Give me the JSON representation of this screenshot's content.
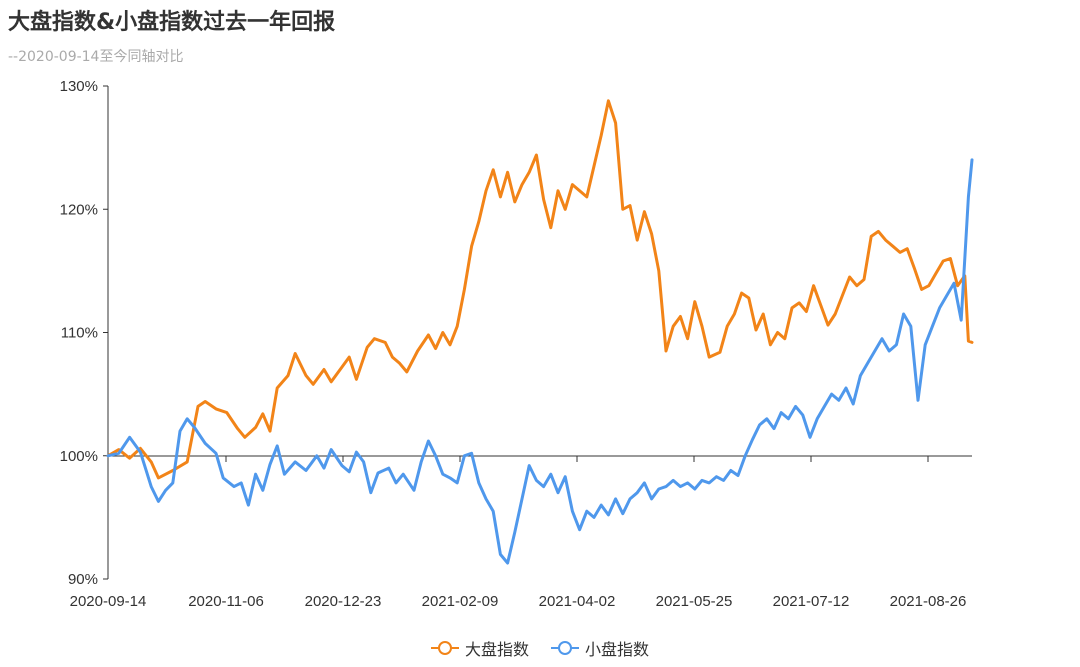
{
  "title": "大盘指数&小盘指数过去一年回报",
  "subtitle": "--2020-09-14至今同轴对比",
  "colors": {
    "series1": "#f28418",
    "series2": "#4f98ec",
    "axis": "#333333"
  },
  "chart_data": {
    "type": "line",
    "title": "大盘指数&小盘指数过去一年回报",
    "subtitle": "--2020-09-14至今同轴对比",
    "xlabel": "",
    "ylabel": "",
    "ylim": [
      90,
      130
    ],
    "y_ticks": [
      90,
      100,
      110,
      120,
      130
    ],
    "y_tick_labels": [
      "90%",
      "100%",
      "110%",
      "120%",
      "130%"
    ],
    "x_ticks": [
      "2020-09-14",
      "2020-11-06",
      "2020-12-23",
      "2021-02-09",
      "2021-04-02",
      "2021-05-25",
      "2021-07-12",
      "2021-08-26"
    ],
    "grid": false,
    "legend": "bottom-center",
    "x_count": 241,
    "series": [
      {
        "name": "大盘指数",
        "points": [
          [
            0,
            100
          ],
          [
            3,
            100.5
          ],
          [
            6,
            99.8
          ],
          [
            9,
            100.6
          ],
          [
            12,
            99.5
          ],
          [
            14,
            98.2
          ],
          [
            18,
            98.8
          ],
          [
            22,
            99.5
          ],
          [
            25,
            104
          ],
          [
            27,
            104.4
          ],
          [
            30,
            103.8
          ],
          [
            33,
            103.5
          ],
          [
            36,
            102.2
          ],
          [
            38,
            101.5
          ],
          [
            41,
            102.3
          ],
          [
            43,
            103.4
          ],
          [
            45,
            102
          ],
          [
            47,
            105.5
          ],
          [
            50,
            106.5
          ],
          [
            52,
            108.3
          ],
          [
            55,
            106.5
          ],
          [
            57,
            105.8
          ],
          [
            60,
            107
          ],
          [
            62,
            106
          ],
          [
            65,
            107.2
          ],
          [
            67,
            108
          ],
          [
            69,
            106.2
          ],
          [
            72,
            108.8
          ],
          [
            74,
            109.5
          ],
          [
            77,
            109.2
          ],
          [
            79,
            108
          ],
          [
            81,
            107.5
          ],
          [
            83,
            106.8
          ],
          [
            86,
            108.5
          ],
          [
            89,
            109.8
          ],
          [
            91,
            108.7
          ],
          [
            93,
            110
          ],
          [
            95,
            109
          ],
          [
            97,
            110.5
          ],
          [
            99,
            113.5
          ],
          [
            101,
            117
          ],
          [
            103,
            119
          ],
          [
            105,
            121.5
          ],
          [
            107,
            123.2
          ],
          [
            109,
            121
          ],
          [
            111,
            123
          ],
          [
            113,
            120.6
          ],
          [
            115,
            122
          ],
          [
            117,
            123
          ],
          [
            119,
            124.4
          ],
          [
            121,
            120.8
          ],
          [
            123,
            118.5
          ],
          [
            125,
            121.5
          ],
          [
            127,
            120
          ],
          [
            129,
            122
          ],
          [
            131,
            121.5
          ],
          [
            133,
            121
          ],
          [
            135,
            123.5
          ],
          [
            137,
            126
          ],
          [
            139,
            128.8
          ],
          [
            141,
            127
          ],
          [
            143,
            120
          ],
          [
            145,
            120.3
          ],
          [
            147,
            117.5
          ],
          [
            149,
            119.8
          ],
          [
            151,
            118
          ],
          [
            153,
            115
          ],
          [
            155,
            108.5
          ],
          [
            157,
            110.5
          ],
          [
            159,
            111.3
          ],
          [
            161,
            109.5
          ],
          [
            163,
            112.5
          ],
          [
            165,
            110.5
          ],
          [
            167,
            108
          ],
          [
            170,
            108.4
          ],
          [
            172,
            110.5
          ],
          [
            174,
            111.5
          ],
          [
            176,
            113.2
          ],
          [
            178,
            112.8
          ],
          [
            180,
            110.2
          ],
          [
            182,
            111.5
          ],
          [
            184,
            109
          ],
          [
            186,
            110
          ],
          [
            188,
            109.5
          ],
          [
            190,
            112
          ],
          [
            192,
            112.4
          ],
          [
            194,
            111.7
          ],
          [
            196,
            113.8
          ],
          [
            198,
            112.2
          ],
          [
            200,
            110.6
          ],
          [
            202,
            111.5
          ],
          [
            204,
            113
          ],
          [
            206,
            114.5
          ],
          [
            208,
            113.8
          ],
          [
            210,
            114.3
          ],
          [
            212,
            117.8
          ],
          [
            214,
            118.2
          ],
          [
            216,
            117.5
          ],
          [
            218,
            117
          ],
          [
            220,
            116.5
          ],
          [
            222,
            116.8
          ],
          [
            224,
            115.2
          ],
          [
            226,
            113.5
          ],
          [
            228,
            113.8
          ],
          [
            230,
            114.8
          ],
          [
            232,
            115.8
          ],
          [
            234,
            116
          ],
          [
            236,
            113.8
          ],
          [
            238,
            114.6
          ],
          [
            239,
            109.3
          ],
          [
            240,
            109.2
          ]
        ]
      },
      {
        "name": "小盘指数",
        "points": [
          [
            0,
            100
          ],
          [
            3,
            100.2
          ],
          [
            6,
            101.5
          ],
          [
            9,
            100.3
          ],
          [
            12,
            97.5
          ],
          [
            14,
            96.3
          ],
          [
            16,
            97.2
          ],
          [
            18,
            97.8
          ],
          [
            20,
            102
          ],
          [
            22,
            103
          ],
          [
            24,
            102.3
          ],
          [
            27,
            101
          ],
          [
            30,
            100.2
          ],
          [
            32,
            98.2
          ],
          [
            35,
            97.5
          ],
          [
            37,
            97.8
          ],
          [
            39,
            96
          ],
          [
            41,
            98.5
          ],
          [
            43,
            97.2
          ],
          [
            45,
            99.3
          ],
          [
            47,
            100.8
          ],
          [
            49,
            98.5
          ],
          [
            52,
            99.5
          ],
          [
            55,
            98.8
          ],
          [
            58,
            100
          ],
          [
            60,
            99
          ],
          [
            62,
            100.5
          ],
          [
            65,
            99.2
          ],
          [
            67,
            98.7
          ],
          [
            69,
            100.3
          ],
          [
            71,
            99.5
          ],
          [
            73,
            97
          ],
          [
            75,
            98.6
          ],
          [
            78,
            99
          ],
          [
            80,
            97.8
          ],
          [
            82,
            98.5
          ],
          [
            85,
            97.2
          ],
          [
            87,
            99.5
          ],
          [
            89,
            101.2
          ],
          [
            91,
            100
          ],
          [
            93,
            98.5
          ],
          [
            95,
            98.2
          ],
          [
            97,
            97.8
          ],
          [
            99,
            100
          ],
          [
            101,
            100.2
          ],
          [
            103,
            97.8
          ],
          [
            105,
            96.5
          ],
          [
            107,
            95.5
          ],
          [
            109,
            92
          ],
          [
            111,
            91.3
          ],
          [
            113,
            93.8
          ],
          [
            115,
            96.5
          ],
          [
            117,
            99.2
          ],
          [
            119,
            98
          ],
          [
            121,
            97.5
          ],
          [
            123,
            98.5
          ],
          [
            125,
            97
          ],
          [
            127,
            98.3
          ],
          [
            129,
            95.5
          ],
          [
            131,
            94
          ],
          [
            133,
            95.5
          ],
          [
            135,
            95
          ],
          [
            137,
            96
          ],
          [
            139,
            95.2
          ],
          [
            141,
            96.5
          ],
          [
            143,
            95.3
          ],
          [
            145,
            96.5
          ],
          [
            147,
            97
          ],
          [
            149,
            97.8
          ],
          [
            151,
            96.5
          ],
          [
            153,
            97.3
          ],
          [
            155,
            97.5
          ],
          [
            157,
            98
          ],
          [
            159,
            97.5
          ],
          [
            161,
            97.8
          ],
          [
            163,
            97.3
          ],
          [
            165,
            98
          ],
          [
            167,
            97.8
          ],
          [
            169,
            98.3
          ],
          [
            171,
            98
          ],
          [
            173,
            98.8
          ],
          [
            175,
            98.4
          ],
          [
            177,
            100
          ],
          [
            179,
            101.3
          ],
          [
            181,
            102.5
          ],
          [
            183,
            103
          ],
          [
            185,
            102.2
          ],
          [
            187,
            103.5
          ],
          [
            189,
            103
          ],
          [
            191,
            104
          ],
          [
            193,
            103.3
          ],
          [
            195,
            101.5
          ],
          [
            197,
            103
          ],
          [
            199,
            104
          ],
          [
            201,
            105
          ],
          [
            203,
            104.5
          ],
          [
            205,
            105.5
          ],
          [
            207,
            104.2
          ],
          [
            209,
            106.5
          ],
          [
            211,
            107.5
          ],
          [
            213,
            108.5
          ],
          [
            215,
            109.5
          ],
          [
            217,
            108.5
          ],
          [
            219,
            109
          ],
          [
            221,
            111.5
          ],
          [
            223,
            110.5
          ],
          [
            225,
            104.5
          ],
          [
            227,
            109
          ],
          [
            229,
            110.5
          ],
          [
            231,
            112
          ],
          [
            233,
            113
          ],
          [
            235,
            114
          ],
          [
            237,
            111
          ],
          [
            239,
            121
          ],
          [
            240,
            124
          ]
        ]
      }
    ]
  }
}
